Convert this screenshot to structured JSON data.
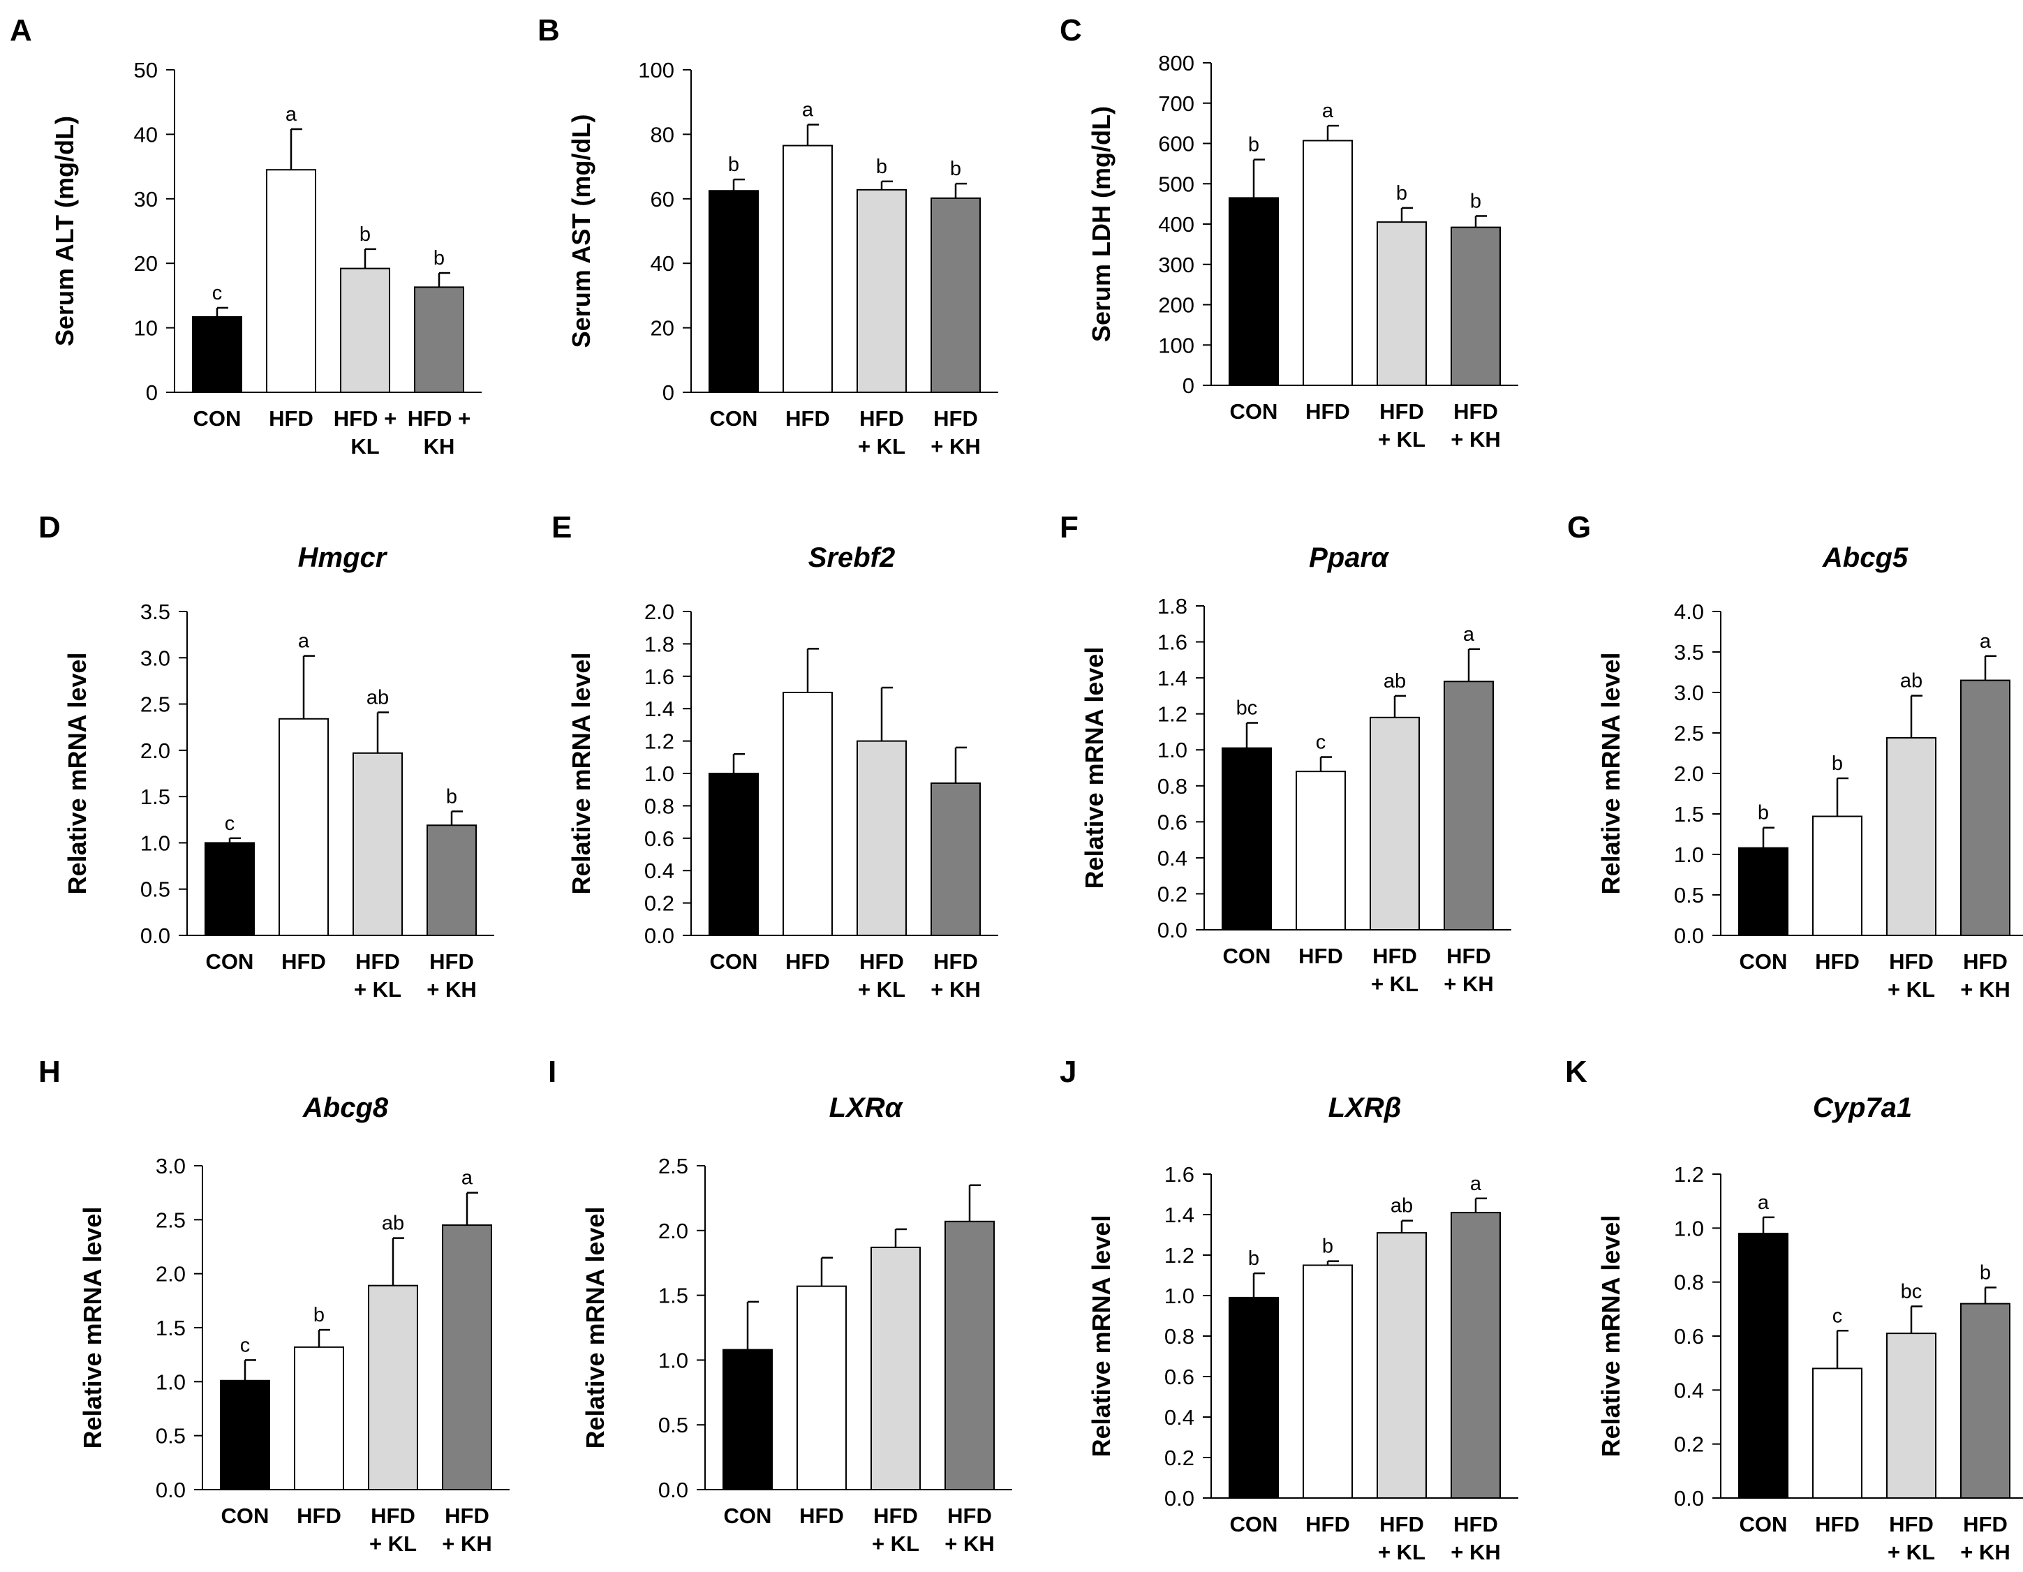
{
  "figure": {
    "group_colors": [
      "#000000",
      "#ffffff",
      "#d9d9d9",
      "#808080"
    ],
    "bar_outline_color": "#000000"
  },
  "chart_data": [
    {
      "type": "bar",
      "panel": "A",
      "title": "",
      "ylabel": "Serum ALT (mg/dL)",
      "categories": [
        [
          "CON"
        ],
        [
          "HFD"
        ],
        [
          "HFD +",
          "KL"
        ],
        [
          "HFD +",
          "KH"
        ]
      ],
      "values": [
        11.7,
        34.5,
        19.2,
        16.3
      ],
      "errors": [
        1.4,
        6.3,
        3.0,
        2.2
      ],
      "significance": [
        "c",
        "a",
        "b",
        "b"
      ],
      "ylim": [
        0,
        50
      ],
      "yticks": [
        "0",
        "10",
        "20",
        "30",
        "40",
        "50"
      ]
    },
    {
      "type": "bar",
      "panel": "B",
      "title": "",
      "ylabel": "Serum AST (mg/dL)",
      "categories": [
        [
          "CON"
        ],
        [
          "HFD"
        ],
        [
          "HFD",
          "+ KL"
        ],
        [
          "HFD",
          "+ KH"
        ]
      ],
      "values": [
        62.5,
        76.5,
        62.8,
        60.2
      ],
      "errors": [
        3.5,
        6.5,
        2.6,
        4.5
      ],
      "significance": [
        "b",
        "a",
        "b",
        "b"
      ],
      "ylim": [
        0,
        100
      ],
      "yticks": [
        "0",
        "20",
        "40",
        "60",
        "80",
        "100"
      ]
    },
    {
      "type": "bar",
      "panel": "C",
      "title": "",
      "ylabel": "Serum LDH (mg/dL)",
      "categories": [
        [
          "CON"
        ],
        [
          "HFD"
        ],
        [
          "HFD",
          "+ KL"
        ],
        [
          "HFD",
          "+ KH"
        ]
      ],
      "values": [
        465,
        607,
        405,
        392
      ],
      "errors": [
        95,
        37,
        35,
        28
      ],
      "significance": [
        "b",
        "a",
        "b",
        "b"
      ],
      "ylim": [
        0,
        800
      ],
      "yticks": [
        "0",
        "100",
        "200",
        "300",
        "400",
        "500",
        "600",
        "700",
        "800"
      ]
    },
    {
      "type": "bar",
      "panel": "D",
      "title": "Hmgcr",
      "ylabel": "Relative mRNA level",
      "categories": [
        [
          "CON"
        ],
        [
          "HFD"
        ],
        [
          "HFD",
          "+ KL"
        ],
        [
          "HFD",
          "+ KH"
        ]
      ],
      "values": [
        1.0,
        2.34,
        1.97,
        1.19
      ],
      "errors": [
        0.05,
        0.68,
        0.44,
        0.15
      ],
      "significance": [
        "c",
        "a",
        "ab",
        "b"
      ],
      "ylim": [
        0,
        3.5
      ],
      "yticks": [
        "0.0",
        "0.5",
        "1.0",
        "1.5",
        "2.0",
        "2.5",
        "3.0",
        "3.5"
      ]
    },
    {
      "type": "bar",
      "panel": "E",
      "title": "Srebf2",
      "ylabel": "Relative mRNA level",
      "categories": [
        [
          "CON"
        ],
        [
          "HFD"
        ],
        [
          "HFD",
          "+ KL"
        ],
        [
          "HFD",
          "+ KH"
        ]
      ],
      "values": [
        1.0,
        1.5,
        1.2,
        0.94
      ],
      "errors": [
        0.12,
        0.27,
        0.33,
        0.22
      ],
      "significance": [
        "",
        "",
        "",
        ""
      ],
      "ylim": [
        0,
        2.0
      ],
      "yticks": [
        "0.0",
        "0.2",
        "0.4",
        "0.6",
        "0.8",
        "1.0",
        "1.2",
        "1.4",
        "1.6",
        "1.8",
        "2.0"
      ]
    },
    {
      "type": "bar",
      "panel": "F",
      "title": "Pparα",
      "ylabel": "Relative mRNA level",
      "categories": [
        [
          "CON"
        ],
        [
          "HFD"
        ],
        [
          "HFD",
          "+ KL"
        ],
        [
          "HFD",
          "+ KH"
        ]
      ],
      "values": [
        1.01,
        0.88,
        1.18,
        1.38
      ],
      "errors": [
        0.14,
        0.08,
        0.12,
        0.18
      ],
      "significance": [
        "bc",
        "c",
        "ab",
        "a"
      ],
      "ylim": [
        0,
        1.8
      ],
      "yticks": [
        "0.0",
        "0.2",
        "0.4",
        "0.6",
        "0.8",
        "1.0",
        "1.2",
        "1.4",
        "1.6",
        "1.8"
      ]
    },
    {
      "type": "bar",
      "panel": "G",
      "title": "Abcg5",
      "ylabel": "Relative mRNA level",
      "categories": [
        [
          "CON"
        ],
        [
          "HFD"
        ],
        [
          "HFD",
          "+ KL"
        ],
        [
          "HFD",
          "+ KH"
        ]
      ],
      "values": [
        1.08,
        1.47,
        2.44,
        3.15
      ],
      "errors": [
        0.25,
        0.47,
        0.52,
        0.3
      ],
      "significance": [
        "b",
        "b",
        "ab",
        "a"
      ],
      "ylim": [
        0,
        4.0
      ],
      "yticks": [
        "0.0",
        "0.5",
        "1.0",
        "1.5",
        "2.0",
        "2.5",
        "3.0",
        "3.5",
        "4.0"
      ]
    },
    {
      "type": "bar",
      "panel": "H",
      "title": "Abcg8",
      "ylabel": "Relative mRNA level",
      "categories": [
        [
          "CON"
        ],
        [
          "HFD"
        ],
        [
          "HFD",
          "+ KL"
        ],
        [
          "HFD",
          "+ KH"
        ]
      ],
      "values": [
        1.01,
        1.32,
        1.89,
        2.45
      ],
      "errors": [
        0.19,
        0.16,
        0.44,
        0.3
      ],
      "significance": [
        "c",
        "b",
        "ab",
        "a"
      ],
      "ylim": [
        0,
        3.0
      ],
      "yticks": [
        "0.0",
        "0.5",
        "1.0",
        "1.5",
        "2.0",
        "2.5",
        "3.0"
      ]
    },
    {
      "type": "bar",
      "panel": "I",
      "title": "LXRα",
      "ylabel": "Relative mRNA level",
      "categories": [
        [
          "CON"
        ],
        [
          "HFD"
        ],
        [
          "HFD",
          "+ KL"
        ],
        [
          "HFD",
          "+ KH"
        ]
      ],
      "values": [
        1.08,
        1.57,
        1.87,
        2.07
      ],
      "errors": [
        0.37,
        0.22,
        0.14,
        0.28
      ],
      "significance": [
        "",
        "",
        "",
        ""
      ],
      "ylim": [
        0,
        2.5
      ],
      "yticks": [
        "0.0",
        "0.5",
        "1.0",
        "1.5",
        "2.0",
        "2.5"
      ]
    },
    {
      "type": "bar",
      "panel": "J",
      "title": "LXRβ",
      "ylabel": "Relative mRNA level",
      "categories": [
        [
          "CON"
        ],
        [
          "HFD"
        ],
        [
          "HFD",
          "+ KL"
        ],
        [
          "HFD",
          "+ KH"
        ]
      ],
      "values": [
        0.99,
        1.15,
        1.31,
        1.41
      ],
      "errors": [
        0.12,
        0.02,
        0.06,
        0.07
      ],
      "significance": [
        "b",
        "b",
        "ab",
        "a"
      ],
      "ylim": [
        0,
        1.6
      ],
      "yticks": [
        "0.0",
        "0.2",
        "0.4",
        "0.6",
        "0.8",
        "1.0",
        "1.2",
        "1.4",
        "1.6"
      ]
    },
    {
      "type": "bar",
      "panel": "K",
      "title": "Cyp7a1",
      "ylabel": "Relative mRNA level",
      "categories": [
        [
          "CON"
        ],
        [
          "HFD"
        ],
        [
          "HFD",
          "+ KL"
        ],
        [
          "HFD",
          "+ KH"
        ]
      ],
      "values": [
        0.98,
        0.48,
        0.61,
        0.72
      ],
      "errors": [
        0.06,
        0.14,
        0.1,
        0.06
      ],
      "significance": [
        "a",
        "c",
        "bc",
        "b"
      ],
      "ylim": [
        0,
        1.2
      ],
      "yticks": [
        "0.0",
        "0.2",
        "0.4",
        "0.6",
        "0.8",
        "1.0",
        "1.2"
      ]
    }
  ]
}
